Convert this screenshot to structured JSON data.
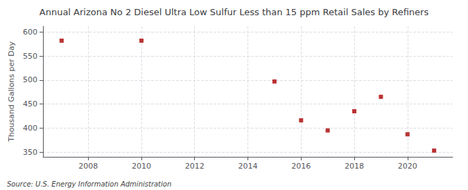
{
  "chart_data": {
    "type": "scatter",
    "title": "Annual Arizona No 2 Diesel Ultra Low Sulfur Less than 15 ppm Retail Sales by Refiners",
    "ylabel": "Thousand Gallons per Day",
    "annotation": "Source: U.S. Energy Information Administration",
    "x": [
      2007,
      2010,
      2015,
      2016,
      2017,
      2018,
      2019,
      2020,
      2021
    ],
    "values": [
      582,
      582,
      497,
      416,
      395,
      435,
      465,
      387,
      353
    ],
    "color": "#aa0000",
    "marker": "square",
    "xlim": [
      2006.3,
      2021.7
    ],
    "xticks": [
      2008,
      2010,
      2012,
      2014,
      2016,
      2018,
      2020
    ],
    "ylim": [
      340,
      612
    ],
    "yticks": [
      350,
      400,
      450,
      500,
      550,
      600
    ],
    "grid": true
  }
}
